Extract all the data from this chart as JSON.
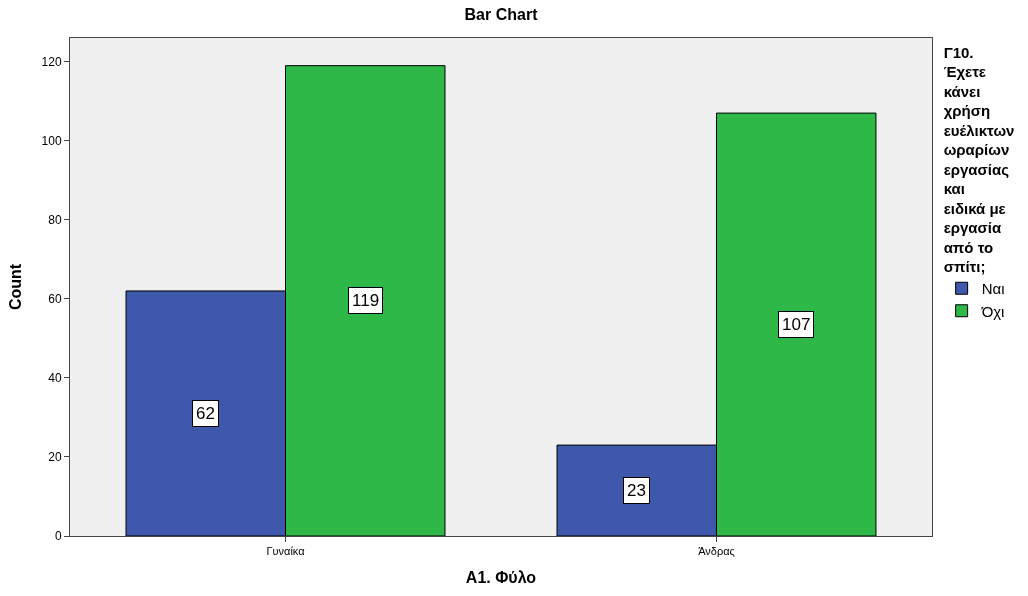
{
  "chart_data": {
    "type": "bar",
    "title": "Bar Chart",
    "xlabel": "A1. Φύλο",
    "ylabel": "Count",
    "legend_title": "Γ10. Έχετε κάνει χρήση ευέλικτων ωραρίων εργασίας και ειδικά με εργασία από το σπίτι;",
    "categories": [
      "Γυναίκα",
      "Άνδρας"
    ],
    "series": [
      {
        "name": "Ναι",
        "color": "#3e58ac",
        "values": [
          62,
          23
        ]
      },
      {
        "name": "Όχι",
        "color": "#2eb848",
        "values": [
          119,
          107
        ]
      }
    ],
    "ylim": [
      0,
      126
    ],
    "yticks": [
      0,
      20,
      40,
      60,
      80,
      100,
      120
    ],
    "grid": false,
    "legend": "right",
    "data_labels": true
  }
}
